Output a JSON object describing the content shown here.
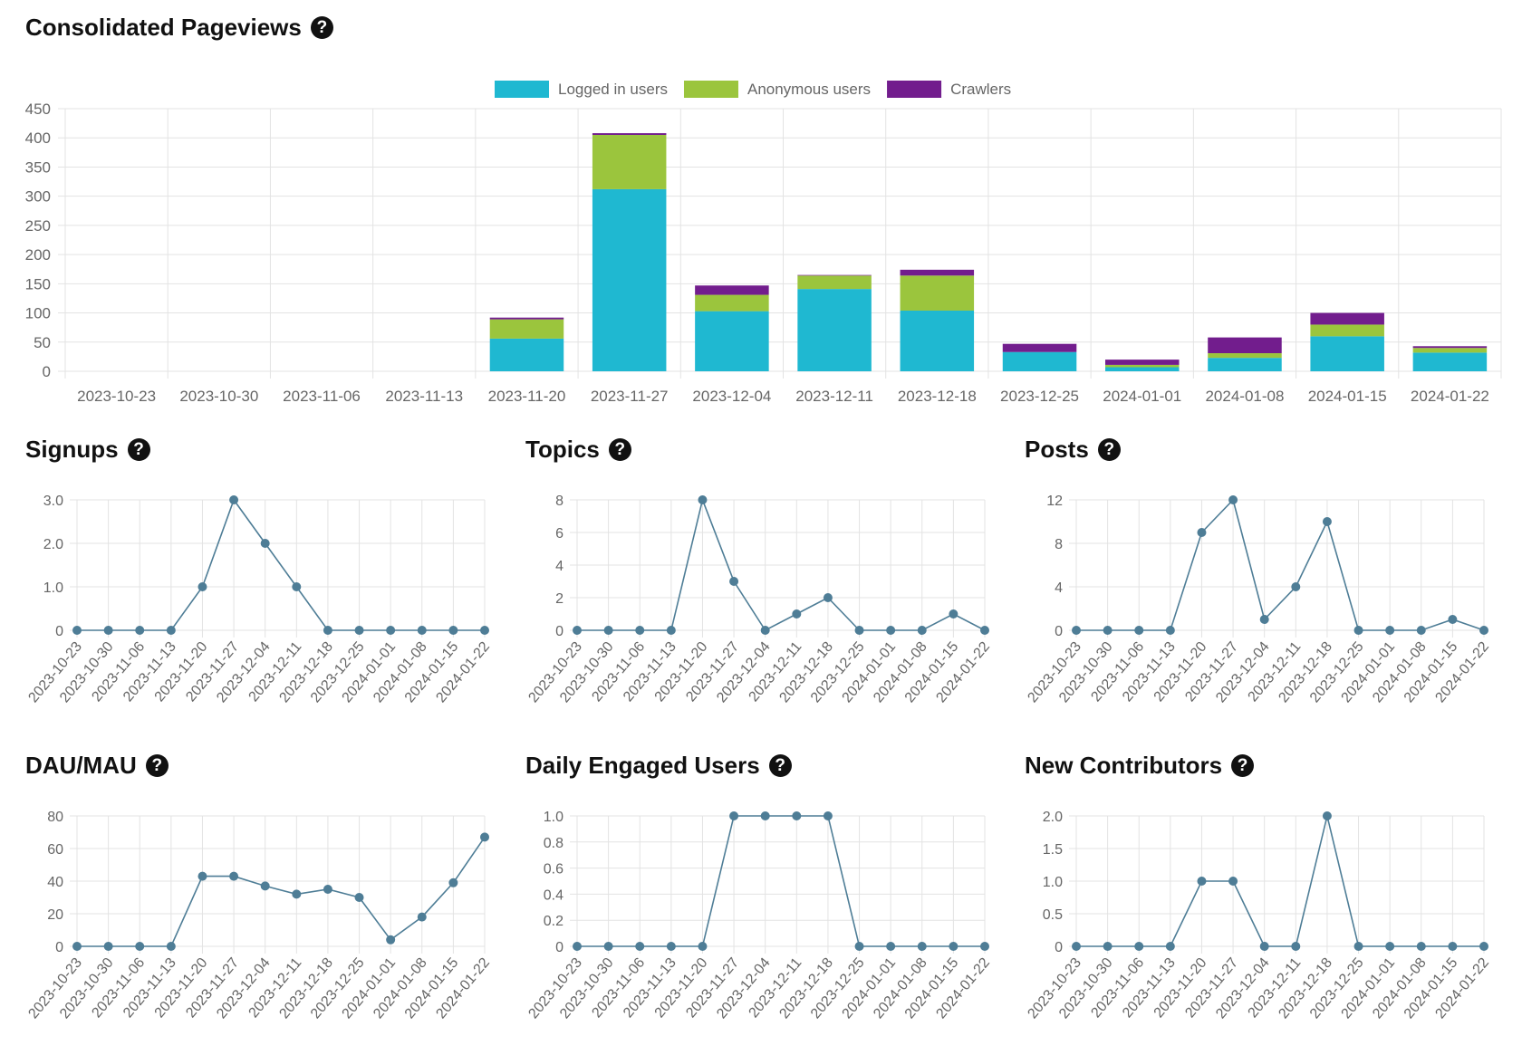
{
  "help_icon_glyph": "?",
  "main": {
    "title": "Consolidated Pageviews",
    "chart_data": {
      "type": "bar",
      "stacked": true,
      "title": "Consolidated Pageviews",
      "categories": [
        "2023-10-23",
        "2023-10-30",
        "2023-11-06",
        "2023-11-13",
        "2023-11-20",
        "2023-11-27",
        "2023-12-04",
        "2023-12-11",
        "2023-12-18",
        "2023-12-25",
        "2024-01-01",
        "2024-01-08",
        "2024-01-15",
        "2024-01-22"
      ],
      "ylim": [
        0,
        450
      ],
      "yticks": [
        0,
        50,
        100,
        150,
        200,
        250,
        300,
        350,
        400,
        450
      ],
      "legend_position": "top-center",
      "series": [
        {
          "name": "Logged in users",
          "color": "#1fb8d1",
          "values": [
            0,
            0,
            0,
            0,
            56,
            312,
            103,
            141,
            104,
            33,
            7,
            23,
            60,
            32
          ]
        },
        {
          "name": "Anonymous users",
          "color": "#9bc53d",
          "values": [
            0,
            0,
            0,
            0,
            33,
            93,
            28,
            23,
            60,
            0,
            4,
            8,
            20,
            8
          ]
        },
        {
          "name": "Crawlers",
          "color": "#721d8d",
          "values": [
            0,
            0,
            0,
            0,
            3,
            3,
            16,
            1,
            10,
            14,
            9,
            27,
            20,
            3
          ]
        }
      ]
    }
  },
  "charts": [
    {
      "title": "Signups",
      "chart_data": {
        "type": "line",
        "title": "Signups",
        "x": [
          "2023-10-23",
          "2023-10-30",
          "2023-11-06",
          "2023-11-13",
          "2023-11-20",
          "2023-11-27",
          "2023-12-04",
          "2023-12-11",
          "2023-12-18",
          "2023-12-25",
          "2024-01-01",
          "2024-01-08",
          "2024-01-15",
          "2024-01-22"
        ],
        "values": [
          0,
          0,
          0,
          0,
          1,
          3,
          2,
          1,
          0,
          0,
          0,
          0,
          0,
          0
        ],
        "ylim": [
          0,
          3
        ],
        "yticks": [
          "0",
          "1.0",
          "2.0",
          "3.0"
        ],
        "ytick_values": [
          0,
          1,
          2,
          3
        ],
        "color": "#4e7d96"
      }
    },
    {
      "title": "Topics",
      "chart_data": {
        "type": "line",
        "title": "Topics",
        "x": [
          "2023-10-23",
          "2023-10-30",
          "2023-11-06",
          "2023-11-13",
          "2023-11-20",
          "2023-11-27",
          "2023-12-04",
          "2023-12-11",
          "2023-12-18",
          "2023-12-25",
          "2024-01-01",
          "2024-01-08",
          "2024-01-15",
          "2024-01-22"
        ],
        "values": [
          0,
          0,
          0,
          0,
          8,
          3,
          0,
          1,
          2,
          0,
          0,
          0,
          1,
          0
        ],
        "ylim": [
          0,
          8
        ],
        "yticks": [
          "0",
          "2",
          "4",
          "6",
          "8"
        ],
        "ytick_values": [
          0,
          2,
          4,
          6,
          8
        ],
        "color": "#4e7d96"
      }
    },
    {
      "title": "Posts",
      "chart_data": {
        "type": "line",
        "title": "Posts",
        "x": [
          "2023-10-23",
          "2023-10-30",
          "2023-11-06",
          "2023-11-13",
          "2023-11-20",
          "2023-11-27",
          "2023-12-04",
          "2023-12-11",
          "2023-12-18",
          "2023-12-25",
          "2024-01-01",
          "2024-01-08",
          "2024-01-15",
          "2024-01-22"
        ],
        "values": [
          0,
          0,
          0,
          0,
          9,
          12,
          1,
          4,
          10,
          0,
          0,
          0,
          1,
          0
        ],
        "ylim": [
          0,
          12
        ],
        "yticks": [
          "0",
          "4",
          "8",
          "12"
        ],
        "ytick_values": [
          0,
          4,
          8,
          12
        ],
        "color": "#4e7d96"
      }
    },
    {
      "title": "DAU/MAU",
      "chart_data": {
        "type": "line",
        "title": "DAU/MAU",
        "x": [
          "2023-10-23",
          "2023-10-30",
          "2023-11-06",
          "2023-11-13",
          "2023-11-20",
          "2023-11-27",
          "2023-12-04",
          "2023-12-11",
          "2023-12-18",
          "2023-12-25",
          "2024-01-01",
          "2024-01-08",
          "2024-01-15",
          "2024-01-22"
        ],
        "values": [
          0,
          0,
          0,
          0,
          43,
          43,
          37,
          32,
          35,
          30,
          4,
          18,
          39,
          67
        ],
        "ylim": [
          0,
          80
        ],
        "yticks": [
          "0",
          "20",
          "40",
          "60",
          "80"
        ],
        "ytick_values": [
          0,
          20,
          40,
          60,
          80
        ],
        "color": "#4e7d96"
      }
    },
    {
      "title": "Daily Engaged Users",
      "chart_data": {
        "type": "line",
        "title": "Daily Engaged Users",
        "x": [
          "2023-10-23",
          "2023-10-30",
          "2023-11-06",
          "2023-11-13",
          "2023-11-20",
          "2023-11-27",
          "2023-12-04",
          "2023-12-11",
          "2023-12-18",
          "2023-12-25",
          "2024-01-01",
          "2024-01-08",
          "2024-01-15",
          "2024-01-22"
        ],
        "values": [
          0,
          0,
          0,
          0,
          0,
          1,
          1,
          1,
          1,
          0,
          0,
          0,
          0,
          0
        ],
        "ylim": [
          0,
          1
        ],
        "yticks": [
          "0",
          "0.2",
          "0.4",
          "0.6",
          "0.8",
          "1.0"
        ],
        "ytick_values": [
          0,
          0.2,
          0.4,
          0.6,
          0.8,
          1
        ],
        "color": "#4e7d96"
      }
    },
    {
      "title": "New Contributors",
      "chart_data": {
        "type": "line",
        "title": "New Contributors",
        "x": [
          "2023-10-23",
          "2023-10-30",
          "2023-11-06",
          "2023-11-13",
          "2023-11-20",
          "2023-11-27",
          "2023-12-04",
          "2023-12-11",
          "2023-12-18",
          "2023-12-25",
          "2024-01-01",
          "2024-01-08",
          "2024-01-15",
          "2024-01-22"
        ],
        "values": [
          0,
          0,
          0,
          0,
          1,
          1,
          0,
          0,
          2,
          0,
          0,
          0,
          0,
          0
        ],
        "ylim": [
          0,
          2
        ],
        "yticks": [
          "0",
          "0.5",
          "1.0",
          "1.5",
          "2.0"
        ],
        "ytick_values": [
          0,
          0.5,
          1,
          1.5,
          2
        ],
        "color": "#4e7d96"
      }
    }
  ]
}
